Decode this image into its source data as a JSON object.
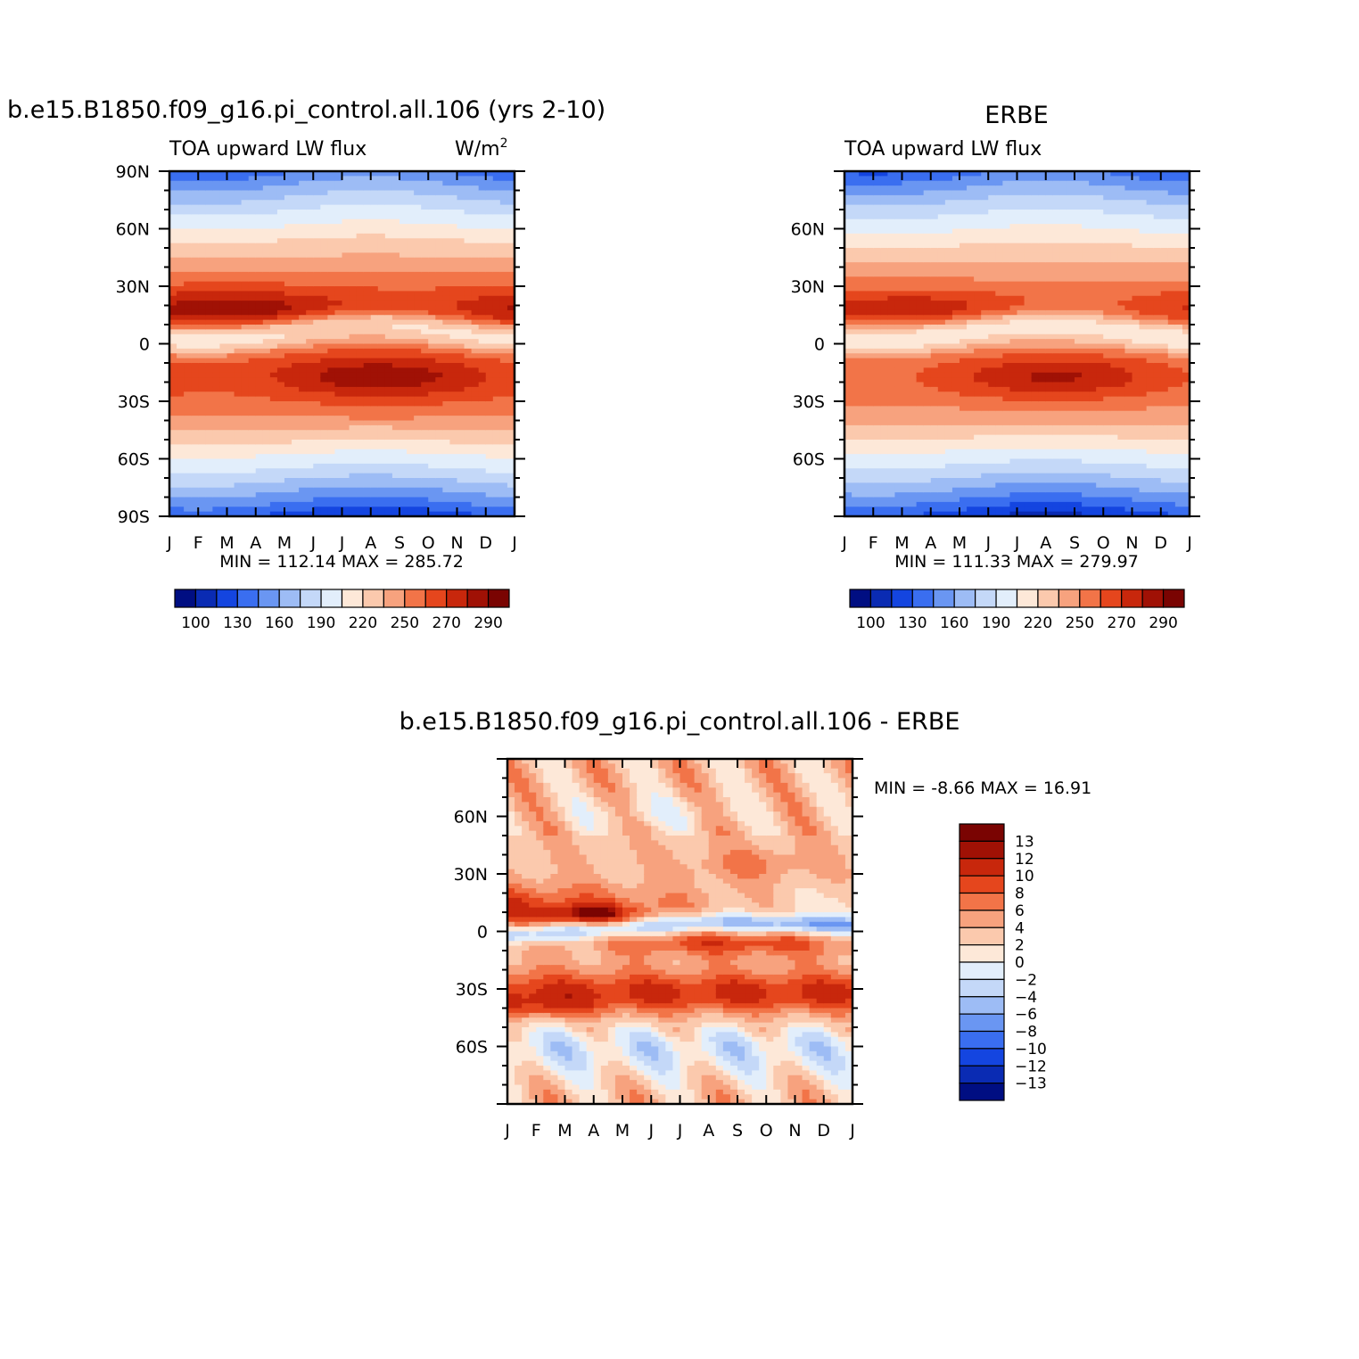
{
  "colors": {
    "abs_scale": [
      "#000e82",
      "#0a2bb3",
      "#1445e0",
      "#3a6ef0",
      "#6a96f2",
      "#9dbcf5",
      "#c4d8f8",
      "#e2eefb",
      "#fde8d8",
      "#fbc9ad",
      "#f7a27e",
      "#f27448",
      "#e5461d",
      "#c8270c",
      "#a01105",
      "#7a0402"
    ],
    "diff_scale": [
      "#000e82",
      "#0a2bb3",
      "#1445e0",
      "#3a6ef0",
      "#6a96f2",
      "#9dbcf5",
      "#c4d8f8",
      "#e2eefb",
      "#fde8d8",
      "#fbc9ad",
      "#f7a27e",
      "#f27448",
      "#e5461d",
      "#c8270c",
      "#a01105",
      "#7a0402"
    ]
  },
  "chart_data": [
    {
      "type": "heatmap",
      "title": "b.e15.B1850.f09_g16.pi_control.all.106 (yrs 2-10)",
      "subtitle_left": "TOA upward LW flux",
      "units_base": "W/m",
      "units_sup": "2",
      "x_ticks": [
        "J",
        "F",
        "M",
        "A",
        "M",
        "J",
        "J",
        "A",
        "S",
        "O",
        "N",
        "D",
        "J"
      ],
      "y_ticks": [
        "90N",
        "60N",
        "30N",
        "0",
        "30S",
        "60S",
        "90S"
      ],
      "y_tick_values": [
        90,
        60,
        30,
        0,
        -30,
        -60,
        -90
      ],
      "ylim": [
        -90,
        90
      ],
      "stats": "MIN = 112.14 MAX = 285.72",
      "field": "model",
      "colorbar_labels": [
        "100",
        "130",
        "160",
        "190",
        "220",
        "250",
        "270",
        "290"
      ],
      "colorbar_levels": [
        100,
        110,
        120,
        130,
        140,
        150,
        160,
        170,
        180,
        190,
        200,
        210,
        220,
        230,
        240,
        250,
        260,
        270,
        280,
        290
      ]
    },
    {
      "type": "heatmap",
      "title": "ERBE",
      "subtitle_left": "TOA upward LW flux",
      "x_ticks": [
        "J",
        "F",
        "M",
        "A",
        "M",
        "J",
        "J",
        "A",
        "S",
        "O",
        "N",
        "D",
        "J"
      ],
      "y_ticks": [
        "60N",
        "30N",
        "0",
        "30S",
        "60S"
      ],
      "y_tick_values": [
        60,
        30,
        0,
        -30,
        -60
      ],
      "ylim": [
        -90,
        90
      ],
      "stats": "MIN = 111.33 MAX = 279.97",
      "field": "obs",
      "colorbar_labels": [
        "100",
        "130",
        "160",
        "190",
        "220",
        "250",
        "270",
        "290"
      ]
    },
    {
      "type": "heatmap",
      "title": "b.e15.B1850.f09_g16.pi_control.all.106 - ERBE",
      "x_ticks": [
        "J",
        "F",
        "M",
        "A",
        "M",
        "J",
        "J",
        "A",
        "S",
        "O",
        "N",
        "D",
        "J"
      ],
      "y_ticks": [
        "60N",
        "30N",
        "0",
        "30S",
        "60S"
      ],
      "y_tick_values": [
        60,
        30,
        0,
        -30,
        -60
      ],
      "ylim": [
        -90,
        90
      ],
      "stats": "MIN =   -8.66 MAX =   16.91",
      "field": "diff",
      "colorbar_labels": [
        "13",
        "12",
        "10",
        "8",
        "6",
        "4",
        "2",
        "0",
        "-2",
        "-4",
        "-6",
        "-8",
        "-10",
        "-12",
        "-13"
      ]
    }
  ]
}
